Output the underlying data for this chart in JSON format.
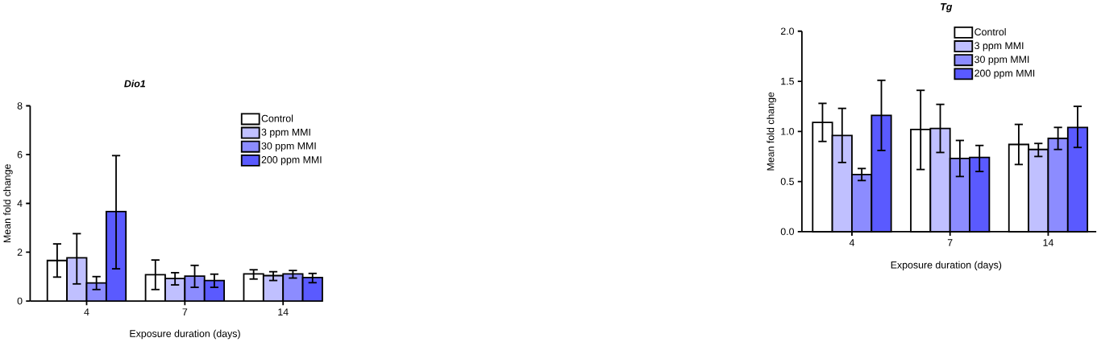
{
  "chart_data": [
    {
      "type": "bar",
      "title": "Dio1",
      "xlabel": "Exposure duration (days)",
      "ylabel": "Mean fold change",
      "categories": [
        "4",
        "7",
        "14"
      ],
      "ylim": [
        0,
        8
      ],
      "yticks": [
        0,
        2,
        4,
        6,
        8
      ],
      "legend": "top right",
      "series": [
        {
          "name": "Control",
          "color": "#ffffff",
          "values": [
            1.66,
            1.08,
            1.11
          ],
          "errors": [
            [
              0.98,
              2.34
            ],
            [
              0.47,
              1.68
            ],
            [
              0.9,
              1.28
            ]
          ]
        },
        {
          "name": "3 ppm MMI",
          "color": "#c0c0ff",
          "values": [
            1.77,
            0.92,
            1.04
          ],
          "errors": [
            [
              0.7,
              2.76
            ],
            [
              0.66,
              1.16
            ],
            [
              0.84,
              1.2
            ]
          ]
        },
        {
          "name": "30 ppm MMI",
          "color": "#8c8cff",
          "values": [
            0.74,
            1.02,
            1.11
          ],
          "errors": [
            [
              0.47,
              1.0
            ],
            [
              0.56,
              1.46
            ],
            [
              0.94,
              1.25
            ]
          ]
        },
        {
          "name": "200 ppm MMI",
          "color": "#5a5aff",
          "values": [
            3.67,
            0.84,
            0.96
          ],
          "errors": [
            [
              1.32,
              5.96
            ],
            [
              0.56,
              1.1
            ],
            [
              0.75,
              1.13
            ]
          ]
        }
      ]
    },
    {
      "type": "bar",
      "title": "Tg",
      "xlabel": "Exposure duration (days)",
      "ylabel": "Mean fold change",
      "categories": [
        "4",
        "7",
        "14"
      ],
      "ylim": [
        0,
        2
      ],
      "yticks": [
        {
          "value": 0,
          "label": "0.0"
        },
        {
          "value": 0.5,
          "label": "0.5"
        },
        {
          "value": 1,
          "label": "1.0"
        },
        {
          "value": 1.5,
          "label": "1.5"
        },
        {
          "value": 2,
          "label": "2.0"
        }
      ],
      "legend": "top right",
      "series": [
        {
          "name": "Control",
          "color": "#ffffff",
          "values": [
            1.09,
            1.02,
            0.87
          ],
          "errors": [
            [
              0.9,
              1.28
            ],
            [
              0.62,
              1.41
            ],
            [
              0.67,
              1.07
            ]
          ]
        },
        {
          "name": "3 ppm MMI",
          "color": "#c0c0ff",
          "values": [
            0.96,
            1.03,
            0.82
          ],
          "errors": [
            [
              0.69,
              1.23
            ],
            [
              0.79,
              1.27
            ],
            [
              0.75,
              0.88
            ]
          ]
        },
        {
          "name": "30 ppm MMI",
          "color": "#8c8cff",
          "values": [
            0.57,
            0.73,
            0.93
          ],
          "errors": [
            [
              0.51,
              0.63
            ],
            [
              0.55,
              0.91
            ],
            [
              0.82,
              1.04
            ]
          ]
        },
        {
          "name": "200 ppm MMI",
          "color": "#5a5aff",
          "values": [
            1.16,
            0.74,
            1.04
          ],
          "errors": [
            [
              0.81,
              1.51
            ],
            [
              0.6,
              0.86
            ],
            [
              0.84,
              1.25
            ]
          ]
        }
      ]
    }
  ]
}
